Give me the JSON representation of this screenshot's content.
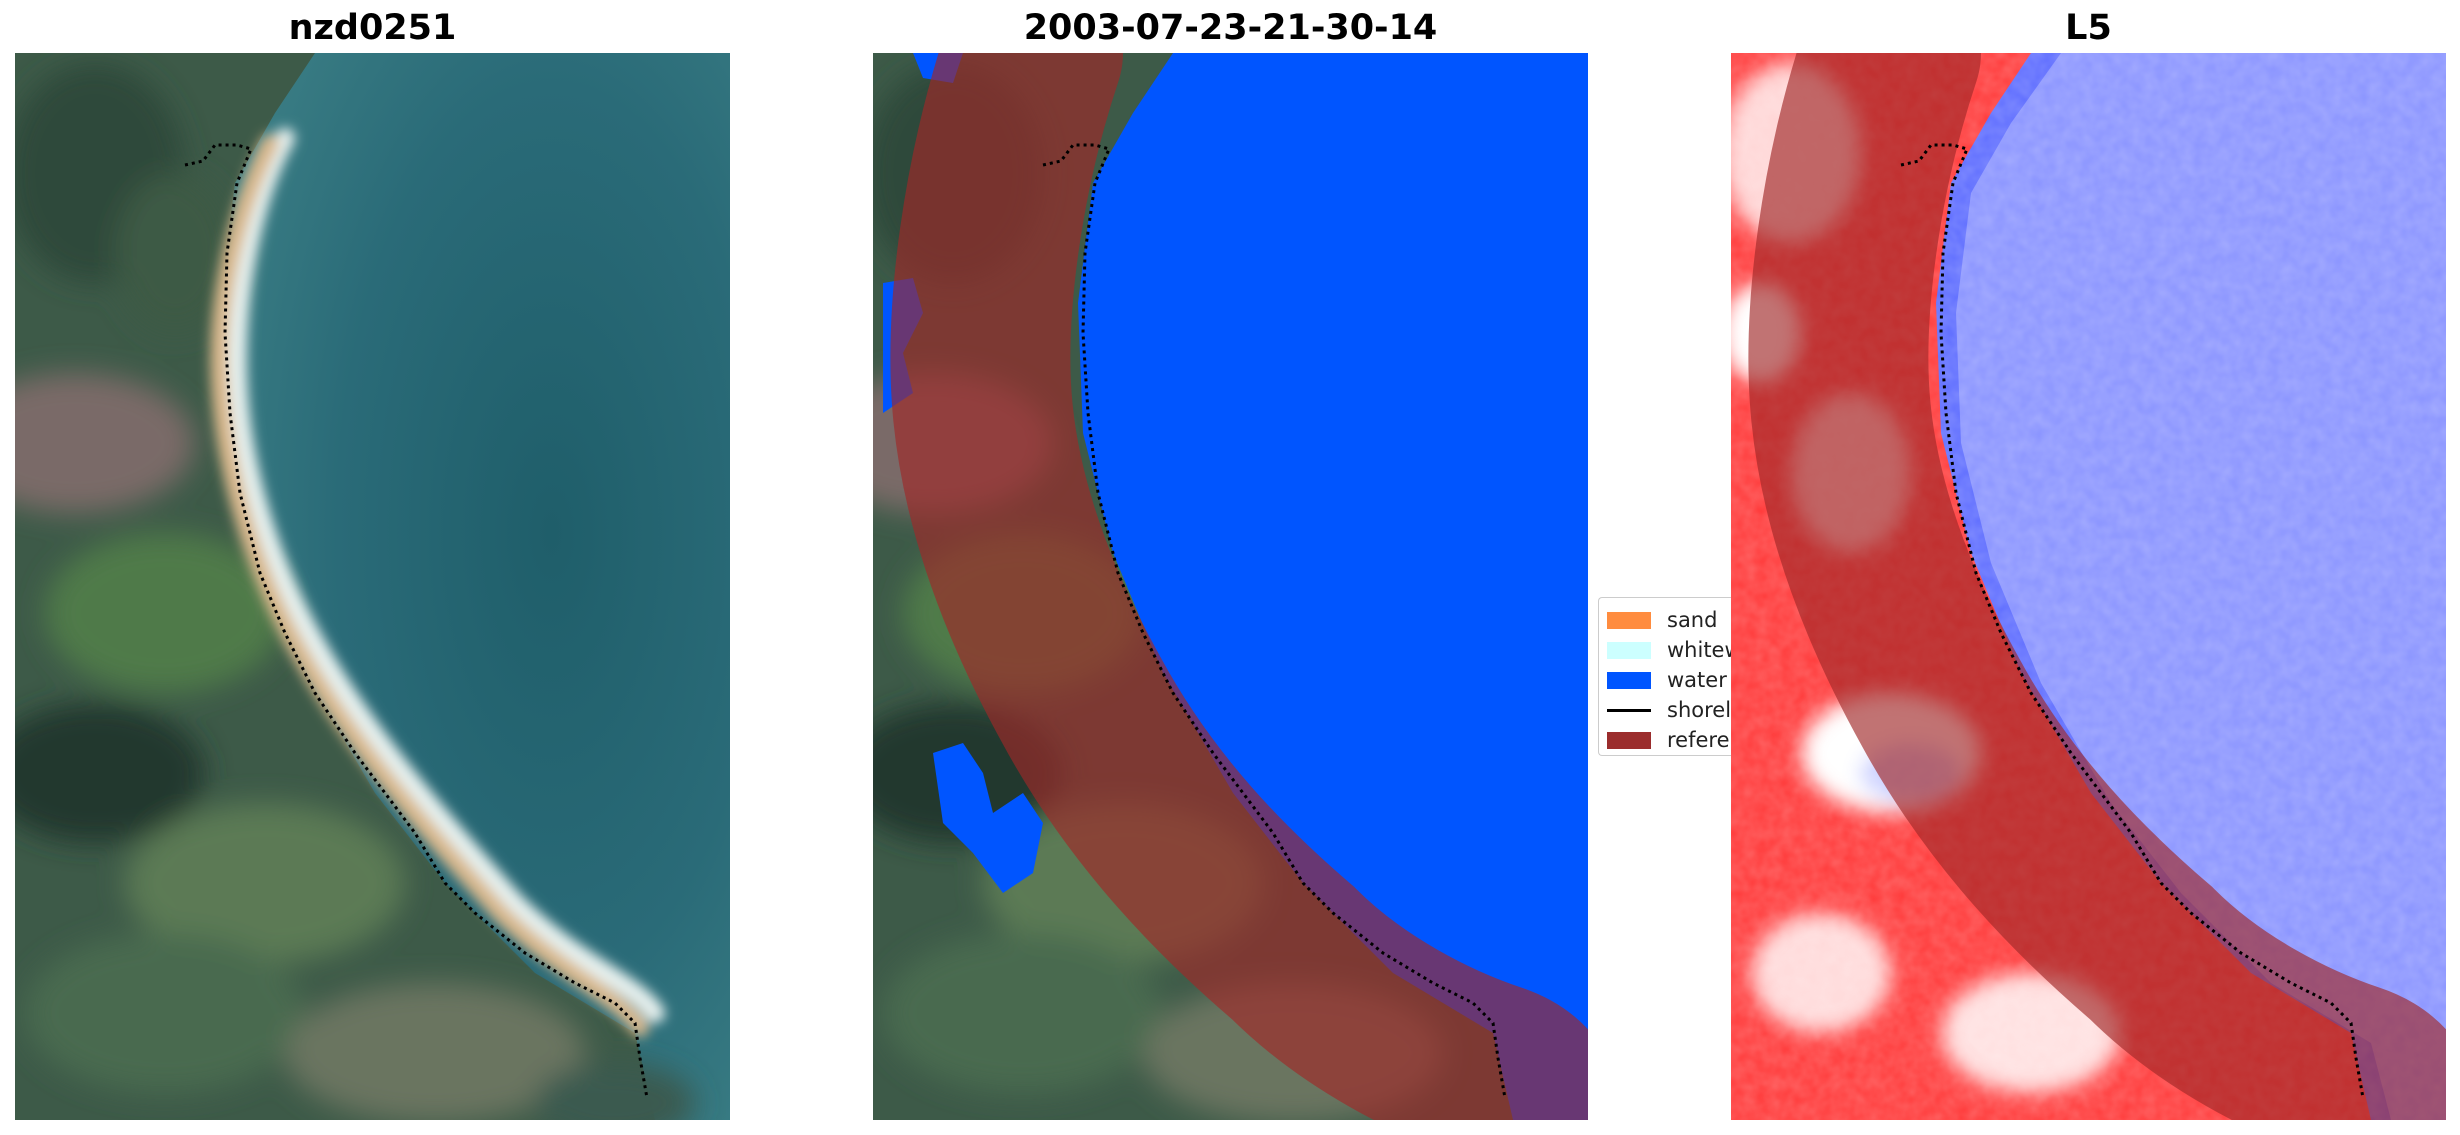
{
  "panels": [
    {
      "title": "nzd0251"
    },
    {
      "title": "2003-07-23-21-30-14"
    },
    {
      "title": "L5"
    }
  ],
  "legend": {
    "items": [
      {
        "label": "sand",
        "color": "#ff8c3f"
      },
      {
        "label": "whitewater",
        "color": "#ccffff"
      },
      {
        "label": "water",
        "color": "#0055ff"
      },
      {
        "label": "shoreline",
        "color": "#000000"
      },
      {
        "label": "reference shoreline buffer",
        "color": "#9b2d2d"
      }
    ]
  },
  "colors": {
    "water_rgb": "#2b6a78",
    "land_rgb": "#3e5a43",
    "sand_rgb": "#d9b88c",
    "surf_rgb": "#e8f2f2",
    "class_water": "#0055ff",
    "buffer": "#a02828",
    "index_land": "#ff2020",
    "index_water": "#4050ff"
  }
}
